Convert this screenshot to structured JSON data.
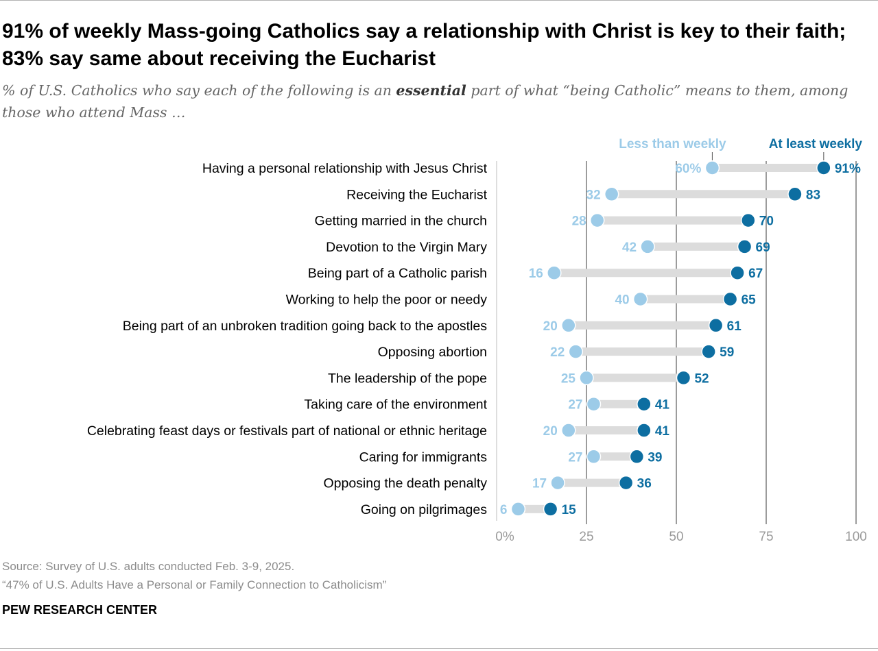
{
  "title": "91% of weekly Mass-going Catholics say a relationship with Christ is key to their faith; 83% say same about receiving the Eucharist",
  "subtitle_before": "% of U.S. Catholics who say each of the following is an ",
  "subtitle_emphasis": "essential",
  "subtitle_after": " part of what “being Catholic” means to them, among those who attend Mass …",
  "source": "Source: Survey of U.S. adults conducted Feb. 3-9, 2025.",
  "report": "“47% of U.S. Adults Have a Personal or Family Connection to Catholicism”",
  "brand": "PEW RESEARCH CENTER",
  "colors": {
    "less_than_weekly": "#9ccbe8",
    "at_least_weekly": "#0d6ea1",
    "connector": "#dcdcdc",
    "gridline": "#3a3a3a",
    "axis_text": "#9a9a9a"
  },
  "chart_data": {
    "type": "dot",
    "xlim": [
      0,
      100
    ],
    "xticks": [
      0,
      25,
      50,
      75,
      100
    ],
    "xtick_labels": [
      "0%",
      "25",
      "50",
      "75",
      "100"
    ],
    "categories": [
      "Having a personal relationship with Jesus Christ",
      "Receiving the Eucharist",
      "Getting married in the church",
      "Devotion to the Virgin Mary",
      "Being part of a Catholic parish",
      "Working to help the poor or needy",
      "Being part of an unbroken tradition going back to the apostles",
      "Opposing abortion",
      "The leadership of the pope",
      "Taking care of the environment",
      "Celebrating feast days or festivals part of national or ethnic heritage",
      "Caring for immigrants",
      "Opposing the death penalty",
      "Going on pilgrimages"
    ],
    "series": [
      {
        "name": "Less than weekly",
        "values": [
          60,
          32,
          28,
          42,
          16,
          40,
          20,
          22,
          25,
          27,
          20,
          27,
          17,
          6
        ],
        "labels": [
          "60%",
          "32",
          "28",
          "42",
          "16",
          "40",
          "20",
          "22",
          "25",
          "27",
          "20",
          "27",
          "17",
          "6"
        ]
      },
      {
        "name": "At least weekly",
        "values": [
          91,
          83,
          70,
          69,
          67,
          65,
          61,
          59,
          52,
          41,
          41,
          39,
          36,
          15
        ],
        "labels": [
          "91%",
          "83",
          "70",
          "69",
          "67",
          "65",
          "61",
          "59",
          "52",
          "41",
          "41",
          "39",
          "36",
          "15"
        ]
      }
    ]
  }
}
